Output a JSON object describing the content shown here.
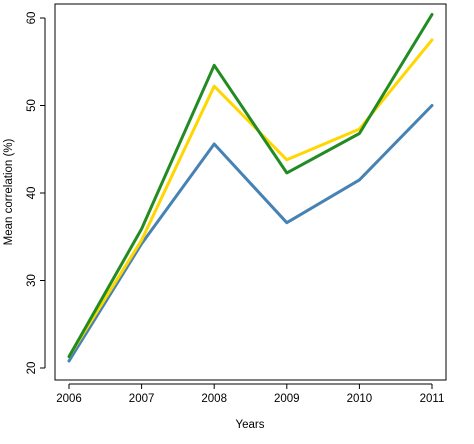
{
  "chart_data": {
    "type": "line",
    "title": "",
    "xlabel": "Years",
    "ylabel": "Mean correlation (%)",
    "x": [
      "2006",
      "2007",
      "2008",
      "2009",
      "2010",
      "2011"
    ],
    "yticks": [
      20,
      30,
      40,
      50,
      60
    ],
    "ylim": [
      20,
      62
    ],
    "grid": false,
    "series": [
      {
        "color": "#4682b4",
        "values": [
          20.8,
          34.2,
          45.6,
          36.6,
          41.5,
          50.0
        ]
      },
      {
        "color": "#ffd700",
        "values": [
          21.3,
          34.6,
          52.2,
          43.8,
          47.3,
          57.5
        ]
      },
      {
        "color": "#228b22",
        "values": [
          21.3,
          35.9,
          54.6,
          42.3,
          46.8,
          60.4
        ]
      }
    ]
  }
}
